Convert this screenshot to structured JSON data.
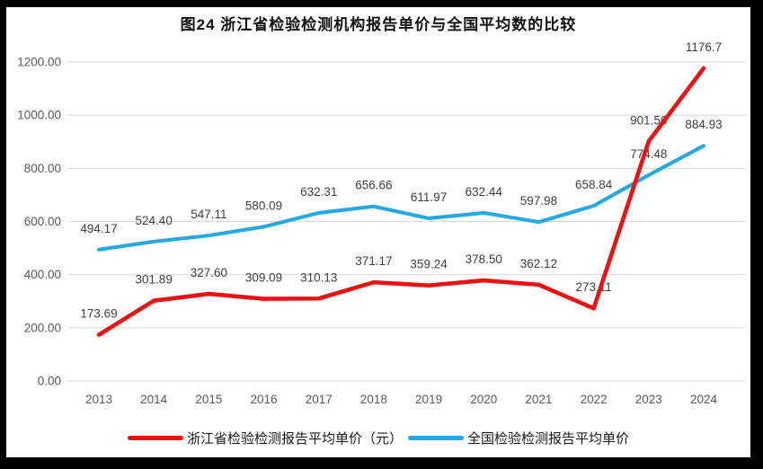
{
  "title": "图24  浙江省检验检测机构报告单价与全国平均数的比较",
  "colors": {
    "frame_border": "#000000",
    "background": "#ffffff",
    "gridline": "#d9d9d9",
    "tick_text": "#595959",
    "data_label_text": "#404040",
    "title_text": "#111111",
    "series_zhejiang": "#ee1111",
    "series_national": "#25a9e2"
  },
  "chart_data": {
    "type": "line",
    "title": "图24  浙江省检验检测机构报告单价与全国平均数的比较",
    "categories": [
      "2013",
      "2014",
      "2015",
      "2016",
      "2017",
      "2018",
      "2019",
      "2020",
      "2021",
      "2022",
      "2023",
      "2024"
    ],
    "series": [
      {
        "name": "浙江省检验检测报告平均单价（元）",
        "color": "#ee1111",
        "values": [
          173.69,
          301.89,
          327.6,
          309.09,
          310.13,
          371.17,
          359.24,
          378.5,
          362.12,
          273.11,
          901.56,
          1176.7
        ],
        "labels": [
          "173.69",
          "301.89",
          "327.60",
          "309.09",
          "310.13",
          "371.17",
          "359.24",
          "378.50",
          "362.12",
          "273.11",
          "901.56",
          "1176.7"
        ]
      },
      {
        "name": "全国检验检测报告平均单价",
        "color": "#25a9e2",
        "values": [
          494.17,
          524.4,
          547.11,
          580.09,
          632.31,
          656.66,
          611.97,
          632.44,
          597.98,
          658.84,
          774.48,
          884.93
        ],
        "labels": [
          "494.17",
          "524.40",
          "547.11",
          "580.09",
          "632.31",
          "656.66",
          "611.97",
          "632.44",
          "597.98",
          "658.84",
          "774.48",
          "884.93"
        ]
      }
    ],
    "xlabel": "",
    "ylabel": "",
    "ylim": [
      0,
      1200
    ],
    "yticks": [
      0,
      200,
      400,
      600,
      800,
      1000,
      1200
    ],
    "ytick_labels": [
      "0.00",
      "200.00",
      "400.00",
      "600.00",
      "800.00",
      "1000.00",
      "1200.00"
    ],
    "grid": true,
    "legend_position": "bottom",
    "data_labels_shown": true
  }
}
